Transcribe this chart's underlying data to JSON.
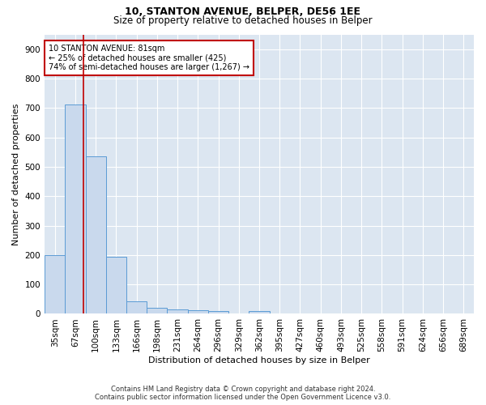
{
  "title1": "10, STANTON AVENUE, BELPER, DE56 1EE",
  "title2": "Size of property relative to detached houses in Belper",
  "xlabel": "Distribution of detached houses by size in Belper",
  "ylabel": "Number of detached properties",
  "footer1": "Contains HM Land Registry data © Crown copyright and database right 2024.",
  "footer2": "Contains public sector information licensed under the Open Government Licence v3.0.",
  "bin_labels": [
    "35sqm",
    "67sqm",
    "100sqm",
    "133sqm",
    "166sqm",
    "198sqm",
    "231sqm",
    "264sqm",
    "296sqm",
    "329sqm",
    "362sqm",
    "395sqm",
    "427sqm",
    "460sqm",
    "493sqm",
    "525sqm",
    "558sqm",
    "591sqm",
    "624sqm",
    "656sqm",
    "689sqm"
  ],
  "bar_heights": [
    200,
    713,
    535,
    193,
    42,
    20,
    15,
    13,
    10,
    0,
    10,
    0,
    0,
    0,
    0,
    0,
    0,
    0,
    0,
    0,
    0
  ],
  "bar_color": "#c9d9ed",
  "bar_edge_color": "#5b9bd5",
  "ylim": [
    0,
    950
  ],
  "yticks": [
    0,
    100,
    200,
    300,
    400,
    500,
    600,
    700,
    800,
    900
  ],
  "vline_x": 1.4,
  "vline_color": "#c00000",
  "annotation_text": "10 STANTON AVENUE: 81sqm\n← 25% of detached houses are smaller (425)\n74% of semi-detached houses are larger (1,267) →",
  "annotation_box_color": "#c00000",
  "bg_color": "#dce6f1",
  "title1_fontsize": 9,
  "title2_fontsize": 8.5,
  "xlabel_fontsize": 8,
  "ylabel_fontsize": 8,
  "tick_fontsize": 7.5,
  "footer_fontsize": 6,
  "annotation_fontsize": 7
}
